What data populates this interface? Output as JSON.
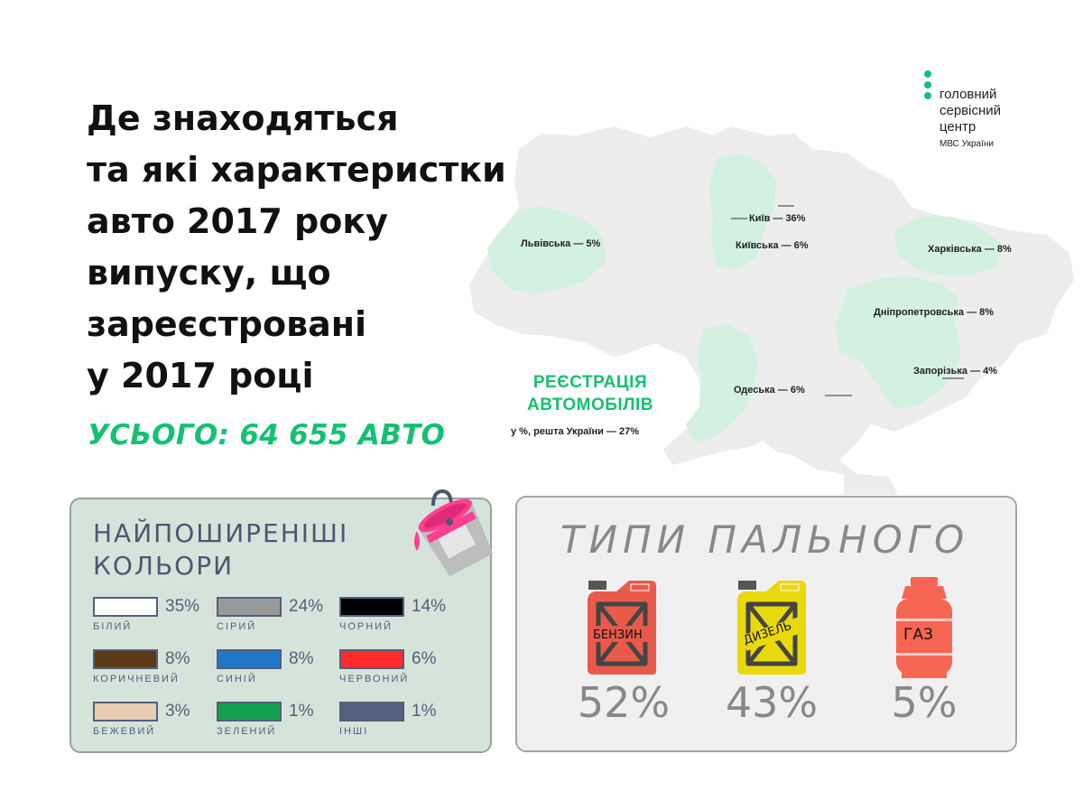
{
  "title_lines": [
    "Де знаходяться",
    "та які характеристки",
    "авто 2017 року",
    "випуску, що",
    "зареєстровані",
    "у 2017 році"
  ],
  "total": "УСЬОГО: 64 655 АВТО",
  "logo": {
    "line1": "головний",
    "line2": "сервісний",
    "line3": "центр",
    "sub": "МВС України"
  },
  "map": {
    "regions": [
      {
        "label": "Львівська — 5%"
      },
      {
        "label": "Київ — 36%"
      },
      {
        "label": "Київська — 6%"
      },
      {
        "label": "Харківська — 8%"
      },
      {
        "label": "Дніпропетровська — 8%"
      },
      {
        "label": "Запорізька — 4%"
      },
      {
        "label": "Одеська — 6%"
      }
    ],
    "reg_title_1": "РЕЄСТРАЦІЯ",
    "reg_title_2": "АВТОМОБІЛІВ",
    "reg_note": "у %, решта України — 27%",
    "base_color": "#ededed",
    "highlight_color": "#d3f1e1"
  },
  "colors_panel": {
    "title_1": "НАЙПОШИРЕНІШІ",
    "title_2": "КОЛЬОРИ",
    "items": [
      {
        "name": "БІЛИЙ",
        "pct": "35%",
        "color": "#ffffff"
      },
      {
        "name": "СІРИЙ",
        "pct": "24%",
        "color": "#999999"
      },
      {
        "name": "ЧОРНИЙ",
        "pct": "14%",
        "color": "#000000"
      },
      {
        "name": "КОРИЧНЕВИЙ",
        "pct": "8%",
        "color": "#5c3a17"
      },
      {
        "name": "СИНІЙ",
        "pct": "8%",
        "color": "#1f78c8"
      },
      {
        "name": "ЧЕРВОНИЙ",
        "pct": "6%",
        "color": "#ff2a2a"
      },
      {
        "name": "БЕЖЕВИЙ",
        "pct": "3%",
        "color": "#e8cdb2"
      },
      {
        "name": "ЗЕЛЕНИЙ",
        "pct": "1%",
        "color": "#12a050"
      },
      {
        "name": "ІНШІ",
        "pct": "1%",
        "color": "#55607e"
      }
    ]
  },
  "fuel_panel": {
    "title": "ТИПИ ПАЛЬНОГО",
    "items": [
      {
        "name": "БЕНЗИН",
        "pct": "52%",
        "color": "#e95a4b"
      },
      {
        "name": "ДИЗЕЛЬ",
        "pct": "43%",
        "color": "#e8d80c"
      },
      {
        "name": "ГАЗ",
        "pct": "5%",
        "color": "#f66652"
      }
    ]
  }
}
